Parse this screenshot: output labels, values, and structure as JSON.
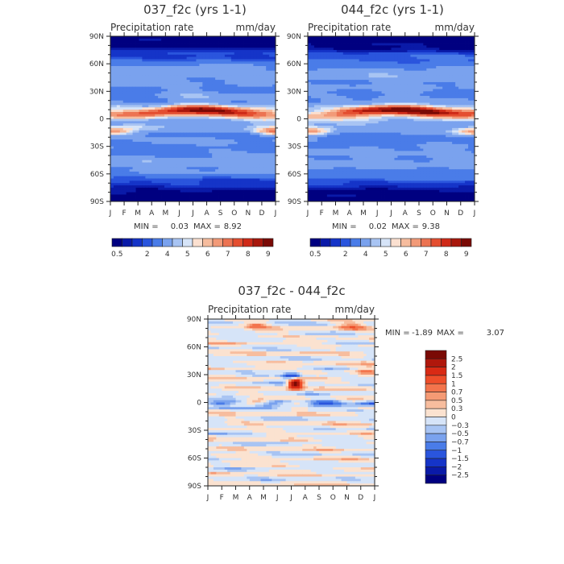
{
  "chart_data": [
    {
      "type": "heatmap",
      "title": "037_f2c (yrs 1-1)",
      "subtitle_left": "Precipitation rate",
      "subtitle_right": "mm/day",
      "x_ticks": [
        "J",
        "F",
        "M",
        "A",
        "M",
        "J",
        "J",
        "A",
        "S",
        "O",
        "N",
        "D",
        "J"
      ],
      "y_ticks": [
        "90N",
        "60N",
        "30N",
        "0",
        "30S",
        "60S",
        "90S"
      ],
      "y_range": [
        -90,
        90
      ],
      "stats": {
        "min_label": "MIN =",
        "min": "0.03",
        "max_label": "MAX =",
        "max": "8.92"
      },
      "colorbar": {
        "orientation": "horizontal",
        "levels": [
          0.5,
          1,
          1.5,
          2,
          3,
          4,
          4.5,
          5,
          5.5,
          6,
          6.5,
          7,
          7.5,
          8,
          8.5,
          9
        ],
        "labels": [
          "0.5",
          "2",
          "4",
          "5",
          "6",
          "7",
          "8",
          "9"
        ],
        "colors": [
          "#000080",
          "#0a1aa8",
          "#1534c8",
          "#2a55dd",
          "#4a7ce8",
          "#7aa2ee",
          "#a8c4f3",
          "#d6e4f8",
          "#fbe0d0",
          "#f6bc9e",
          "#f29a78",
          "#ec7352",
          "#e44e30",
          "#cf2a18",
          "#a8170c",
          "#7a0a05"
        ]
      },
      "fields": {
        "itcz_center_lat": 7,
        "itcz_peak": 8.9,
        "south_band_lat": -14,
        "south_band_months": [
          "J",
          "F",
          "D"
        ],
        "north_band_lat": 28
      }
    },
    {
      "type": "heatmap",
      "title": "044_f2c (yrs 1-1)",
      "subtitle_left": "Precipitation rate",
      "subtitle_right": "mm/day",
      "x_ticks": [
        "J",
        "F",
        "M",
        "A",
        "M",
        "J",
        "J",
        "A",
        "S",
        "O",
        "N",
        "D",
        "J"
      ],
      "y_ticks": [
        "90N",
        "60N",
        "30N",
        "0",
        "30S",
        "60S",
        "90S"
      ],
      "y_range": [
        -90,
        90
      ],
      "stats": {
        "min_label": "MIN =",
        "min": "0.02",
        "max_label": "MAX =",
        "max": "9.38"
      },
      "colorbar": {
        "orientation": "horizontal",
        "levels": [
          0.5,
          1,
          1.5,
          2,
          3,
          4,
          4.5,
          5,
          5.5,
          6,
          6.5,
          7,
          7.5,
          8,
          8.5,
          9
        ],
        "labels": [
          "0.5",
          "2",
          "4",
          "5",
          "6",
          "7",
          "8",
          "9"
        ],
        "colors": [
          "#000080",
          "#0a1aa8",
          "#1534c8",
          "#2a55dd",
          "#4a7ce8",
          "#7aa2ee",
          "#a8c4f3",
          "#d6e4f8",
          "#fbe0d0",
          "#f6bc9e",
          "#f29a78",
          "#ec7352",
          "#e44e30",
          "#cf2a18",
          "#a8170c",
          "#7a0a05"
        ]
      },
      "fields": {
        "itcz_center_lat": 7,
        "itcz_peak": 9.4,
        "south_band_lat": -14,
        "south_band_months": [
          "J",
          "D"
        ],
        "north_band_lat": 28
      }
    },
    {
      "type": "heatmap",
      "title": "037_f2c - 044_f2c",
      "subtitle_left": "Precipitation rate",
      "subtitle_right": "mm/day",
      "x_ticks": [
        "J",
        "F",
        "M",
        "A",
        "M",
        "J",
        "J",
        "A",
        "S",
        "O",
        "N",
        "D",
        "J"
      ],
      "y_ticks": [
        "90N",
        "60N",
        "30N",
        "0",
        "30S",
        "60S",
        "90S"
      ],
      "y_range": [
        -90,
        90
      ],
      "stats": {
        "min_label": "MIN =",
        "min": "-1.89",
        "max_label": "MAX =",
        "max": "3.07"
      },
      "colorbar": {
        "orientation": "vertical",
        "labels": [
          "2.5",
          "2",
          "1.5",
          "1",
          "0.7",
          "0.5",
          "0.3",
          "0",
          "−0.3",
          "−0.5",
          "−0.7",
          "−1",
          "−1.5",
          "−2",
          "−2.5"
        ],
        "colors": [
          "#7a0a05",
          "#b0170c",
          "#d92a14",
          "#ee4e2a",
          "#f3744c",
          "#f59a74",
          "#f7bd9e",
          "#fbe2d0",
          "#d6e4f8",
          "#a8c4f3",
          "#7aa2ee",
          "#4a7ce8",
          "#2a55dd",
          "#1534c8",
          "#0a1aa8",
          "#000080"
        ]
      },
      "fields": {
        "positive_peak_lat": 20,
        "positive_peak_value": 3.07,
        "negative_peak_lat": 28,
        "negative_peak_value": -1.89
      }
    }
  ]
}
